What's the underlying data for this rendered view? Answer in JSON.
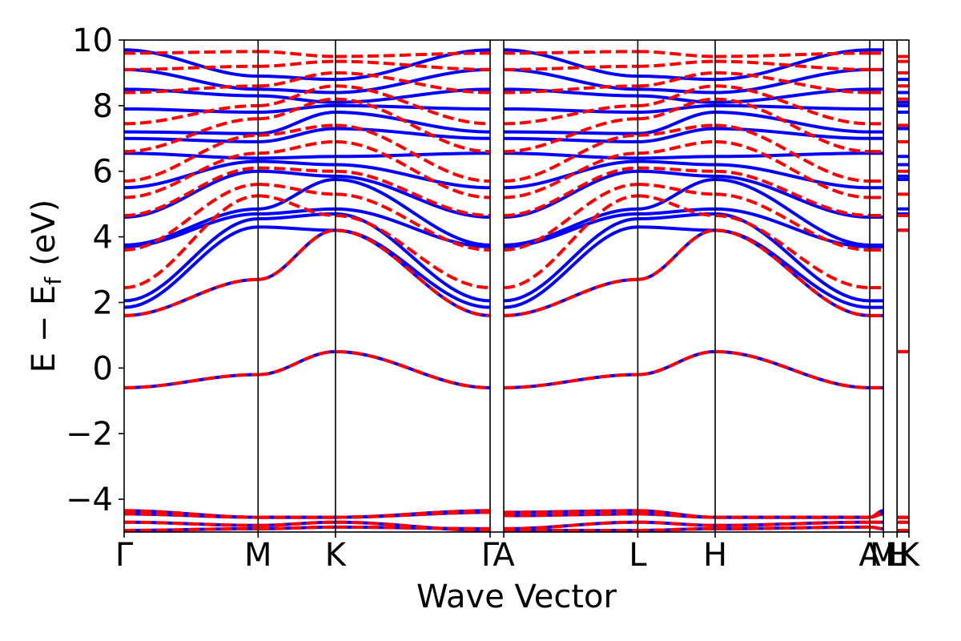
{
  "chart_data": {
    "type": "line",
    "title": "",
    "xlabel": "Wave Vector",
    "ylabel_main": "E − E",
    "ylabel_sub": "f",
    "ylabel_unit": "(eV)",
    "ylim": [
      -5,
      10
    ],
    "yticks": [
      {
        "value": -4,
        "label": "−4"
      },
      {
        "value": -2,
        "label": "−2"
      },
      {
        "value": 0,
        "label": "0"
      },
      {
        "value": 2,
        "label": "2"
      },
      {
        "value": 4,
        "label": "4"
      },
      {
        "value": 6,
        "label": "6"
      },
      {
        "value": 8,
        "label": "8"
      },
      {
        "value": 10,
        "label": "10"
      }
    ],
    "xrange": [
      0,
      1
    ],
    "kpoints": [
      {
        "label": "Γ",
        "pos": 0.0
      },
      {
        "label": "M",
        "pos": 0.1707
      },
      {
        "label": "K",
        "pos": 0.2693
      },
      {
        "label": "Γ",
        "pos": 0.4663
      },
      {
        "label": "A",
        "pos": 0.4837
      },
      {
        "label": "L",
        "pos": 0.6545
      },
      {
        "label": "H",
        "pos": 0.7531
      },
      {
        "label": "A",
        "pos": 0.9501
      },
      {
        "label": "M",
        "pos": 0.9675
      },
      {
        "label": "L",
        "pos": 0.9849
      },
      {
        "label": "H",
        "pos": 0.9849
      },
      {
        "label": "K",
        "pos": 1.0
      }
    ],
    "segments": [
      [
        0,
        1
      ],
      [
        1,
        2
      ],
      [
        2,
        3
      ],
      [
        4,
        5
      ],
      [
        5,
        6
      ],
      [
        6,
        7
      ],
      [
        7,
        8
      ],
      [
        9,
        10
      ],
      [
        10,
        11
      ]
    ],
    "series": [
      {
        "name": "blue bands",
        "color": "#0000ff",
        "style": "solid",
        "bands": [
          [
            -4.95,
            -4.9,
            -4.85,
            -4.9,
            -4.95,
            -4.95,
            -4.9,
            -4.85,
            -4.9,
            -4.95,
            -4.95,
            -4.95
          ],
          [
            -4.7,
            -4.8,
            -4.7,
            -4.95,
            -4.9,
            -4.7,
            -4.8,
            -4.7,
            -4.7,
            -4.8,
            -4.7,
            -4.7
          ],
          [
            -4.45,
            -4.55,
            -4.55,
            -4.35,
            -4.5,
            -4.45,
            -4.55,
            -4.55,
            -4.45,
            -4.55,
            -4.55,
            -4.55
          ],
          [
            -4.35,
            -4.55,
            -4.55,
            -4.4,
            -4.4,
            -4.35,
            -4.55,
            -4.55,
            -4.35,
            -4.55,
            -4.55,
            -4.55
          ],
          [
            -0.6,
            -0.2,
            0.5,
            -0.6,
            -0.6,
            -0.2,
            0.5,
            -0.6,
            -0.6,
            -0.2,
            0.5,
            0.5
          ],
          [
            1.6,
            2.7,
            4.2,
            1.6,
            1.6,
            2.7,
            4.2,
            1.6,
            1.6,
            2.7,
            4.2,
            4.2
          ],
          [
            1.85,
            4.3,
            4.2,
            1.85,
            1.85,
            4.3,
            4.2,
            1.85,
            1.85,
            4.3,
            4.2,
            4.2
          ],
          [
            2.05,
            4.55,
            4.7,
            2.05,
            2.05,
            4.55,
            4.7,
            2.05,
            2.05,
            4.55,
            4.7,
            4.7
          ],
          [
            3.7,
            4.7,
            4.85,
            3.7,
            3.7,
            4.7,
            4.85,
            3.7,
            3.7,
            4.7,
            4.85,
            4.85
          ],
          [
            3.75,
            4.85,
            5.75,
            3.75,
            3.75,
            4.85,
            5.75,
            3.75,
            3.75,
            4.85,
            5.75,
            5.75
          ],
          [
            4.6,
            6.0,
            5.85,
            4.6,
            4.6,
            6.0,
            5.85,
            4.6,
            4.6,
            6.0,
            5.85,
            5.85
          ],
          [
            5.5,
            6.3,
            6.2,
            5.5,
            5.5,
            6.3,
            6.2,
            5.5,
            5.5,
            6.3,
            6.2,
            6.2
          ],
          [
            6.55,
            6.4,
            6.45,
            6.55,
            6.55,
            6.4,
            6.45,
            6.55,
            6.55,
            6.4,
            6.45,
            6.45
          ],
          [
            7.0,
            6.9,
            7.3,
            7.0,
            7.0,
            6.9,
            7.3,
            7.0,
            7.0,
            6.9,
            7.3,
            7.3
          ],
          [
            7.2,
            7.15,
            7.8,
            7.2,
            7.2,
            7.15,
            7.8,
            7.2,
            7.2,
            7.15,
            7.8,
            7.8
          ],
          [
            7.9,
            7.8,
            8.0,
            7.9,
            7.9,
            7.8,
            8.0,
            7.9,
            7.9,
            7.8,
            8.0,
            8.0
          ],
          [
            8.5,
            8.3,
            8.1,
            8.5,
            8.5,
            8.3,
            8.1,
            8.5,
            8.5,
            8.3,
            8.1,
            8.1
          ],
          [
            9.1,
            8.5,
            8.4,
            9.1,
            9.1,
            8.5,
            8.4,
            9.1,
            9.1,
            8.5,
            8.4,
            8.4
          ],
          [
            9.7,
            8.9,
            8.8,
            9.7,
            9.7,
            8.9,
            8.8,
            9.7,
            9.7,
            8.9,
            8.8,
            8.8
          ]
        ]
      },
      {
        "name": "red bands",
        "color": "#ff0000",
        "style": "dashed",
        "bands": [
          [
            -4.95,
            -4.9,
            -4.85,
            -4.9,
            -4.95,
            -4.95,
            -4.9,
            -4.85,
            -4.9,
            -4.95,
            -4.95,
            -4.95
          ],
          [
            -4.7,
            -4.8,
            -4.7,
            -4.95,
            -4.9,
            -4.7,
            -4.8,
            -4.7,
            -4.7,
            -4.8,
            -4.7,
            -4.7
          ],
          [
            -4.45,
            -4.55,
            -4.55,
            -4.35,
            -4.5,
            -4.45,
            -4.55,
            -4.55,
            -4.45,
            -4.55,
            -4.55,
            -4.55
          ],
          [
            -4.35,
            -4.55,
            -4.55,
            -4.4,
            -4.4,
            -4.35,
            -4.55,
            -4.55,
            -4.35,
            -4.55,
            -4.55,
            -4.55
          ],
          [
            -0.6,
            -0.2,
            0.5,
            -0.6,
            -0.6,
            -0.2,
            0.5,
            -0.6,
            -0.6,
            -0.2,
            0.5,
            0.5
          ],
          [
            1.6,
            2.7,
            4.2,
            1.6,
            1.6,
            2.7,
            4.2,
            1.6,
            1.6,
            2.7,
            4.2,
            4.2
          ],
          [
            2.45,
            5.25,
            4.65,
            2.45,
            2.45,
            5.25,
            4.65,
            2.45,
            2.45,
            5.25,
            4.65,
            4.65
          ],
          [
            3.6,
            5.6,
            5.3,
            3.6,
            3.6,
            5.6,
            5.3,
            3.6,
            3.6,
            5.6,
            5.3,
            5.3
          ],
          [
            4.65,
            6.1,
            6.0,
            4.65,
            4.65,
            6.1,
            6.0,
            4.65,
            4.65,
            6.1,
            6.0,
            6.0
          ],
          [
            5.2,
            6.55,
            6.9,
            5.2,
            5.2,
            6.55,
            6.9,
            5.2,
            5.2,
            6.55,
            6.9,
            6.9
          ],
          [
            5.7,
            7.1,
            7.4,
            5.7,
            5.7,
            7.1,
            7.4,
            5.7,
            5.7,
            7.1,
            7.4,
            7.4
          ],
          [
            6.6,
            7.6,
            8.2,
            6.6,
            6.6,
            7.6,
            8.2,
            6.6,
            6.6,
            7.6,
            8.2,
            8.2
          ],
          [
            7.45,
            8.0,
            8.6,
            7.45,
            7.45,
            8.0,
            8.6,
            7.45,
            7.45,
            8.0,
            8.6,
            8.6
          ],
          [
            8.4,
            8.6,
            9.0,
            8.4,
            8.4,
            8.6,
            9.0,
            8.4,
            8.4,
            8.6,
            9.0,
            9.0
          ],
          [
            9.1,
            9.2,
            9.35,
            9.1,
            9.1,
            9.2,
            9.35,
            9.1,
            9.1,
            9.2,
            9.35,
            9.35
          ],
          [
            9.6,
            9.65,
            9.5,
            9.6,
            9.6,
            9.65,
            9.5,
            9.6,
            9.6,
            9.65,
            9.5,
            9.5
          ]
        ]
      }
    ]
  }
}
